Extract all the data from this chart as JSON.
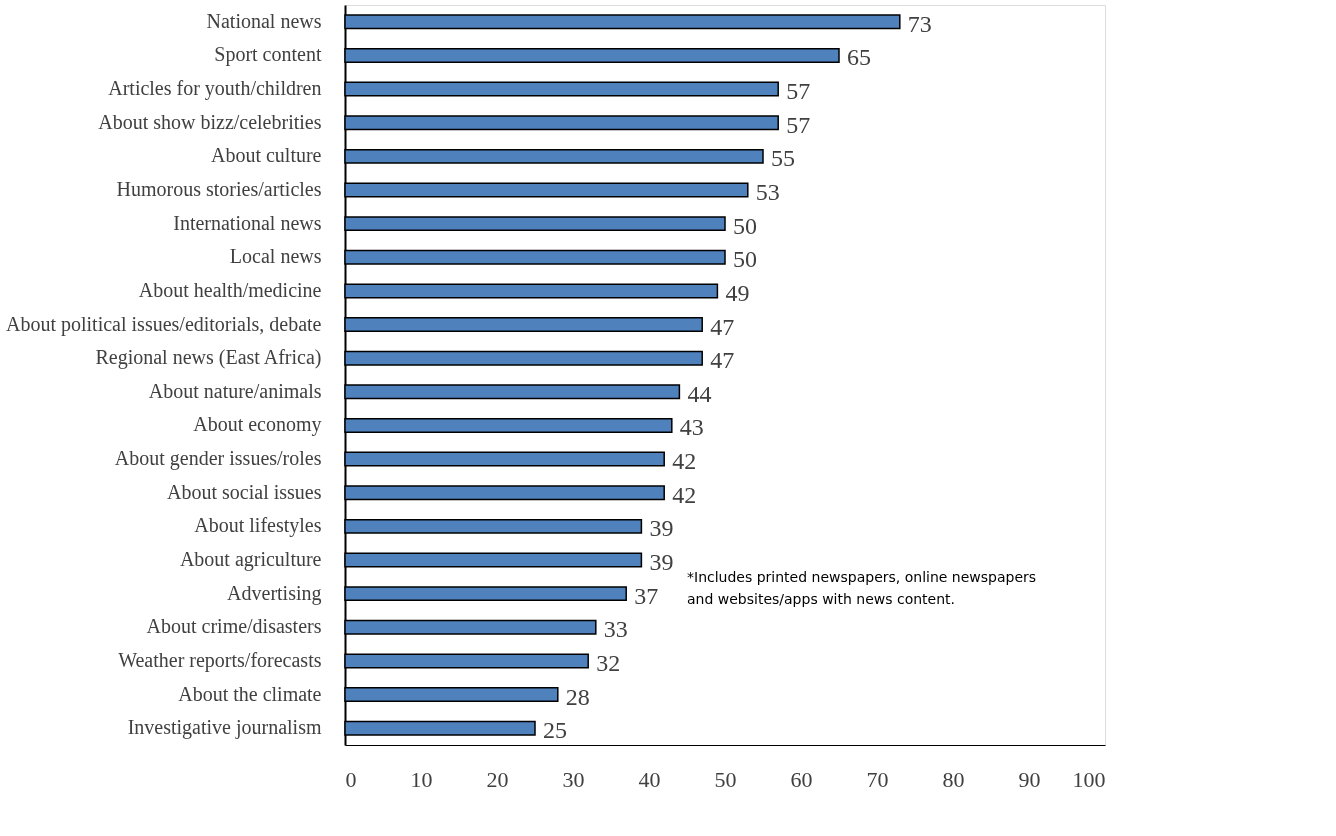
{
  "chart_data": {
    "type": "bar",
    "orientation": "horizontal",
    "categories": [
      "National news",
      "Sport content",
      "Articles for youth/children",
      "About show bizz/celebrities",
      "About culture",
      "Humorous stories/articles",
      "International news",
      "Local news",
      "About health/medicine",
      "About political issues/editorials, debate",
      "Regional news (East Africa)",
      "About nature/animals",
      "About economy",
      "About gender issues/roles",
      "About social issues",
      "About lifestyles",
      "About agriculture",
      "Advertising",
      "About crime/disasters",
      "Weather reports/forecasts",
      "About the climate",
      "Investigative journalism"
    ],
    "values": [
      73,
      65,
      57,
      57,
      55,
      53,
      50,
      50,
      49,
      47,
      47,
      44,
      43,
      42,
      42,
      39,
      39,
      37,
      33,
      32,
      28,
      25
    ],
    "color": "#4f81bd",
    "xlim": [
      0,
      100
    ],
    "xticks": [
      0,
      10,
      20,
      30,
      40,
      50,
      60,
      70,
      80,
      90,
      100
    ],
    "data_labels": true,
    "grid": false,
    "annotations": [
      "*Includes printed newspapers, online newspapers\nand websites/apps with news content."
    ]
  }
}
